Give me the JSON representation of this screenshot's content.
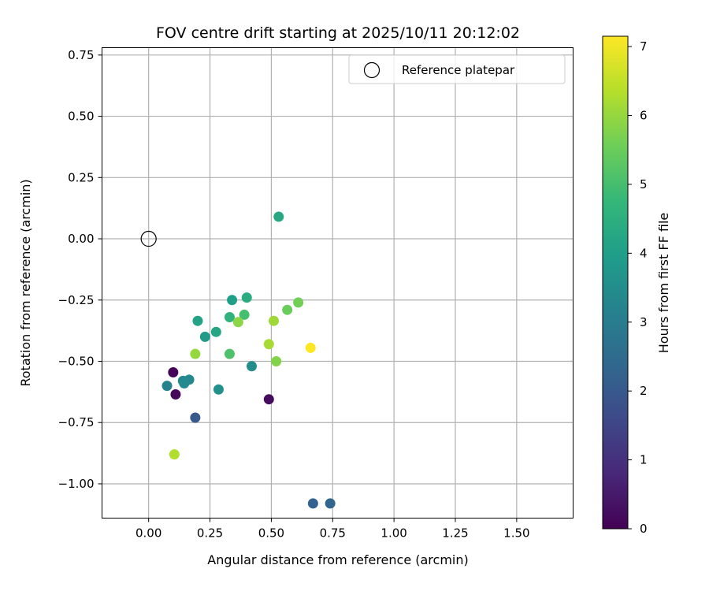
{
  "chart_data": {
    "type": "scatter",
    "title": "FOV centre drift starting at 2025/10/11 20:12:02",
    "xlabel": "Angular distance from reference (arcmin)",
    "ylabel": "Rotation from reference (arcmin)",
    "xlim": [
      -0.19,
      1.73
    ],
    "ylim": [
      -1.14,
      0.78
    ],
    "grid": true,
    "x_ticks": [
      0.0,
      0.25,
      0.5,
      0.75,
      1.0,
      1.25,
      1.5
    ],
    "x_tick_labels": [
      "0.00",
      "0.25",
      "0.50",
      "0.75",
      "1.00",
      "1.25",
      "1.50"
    ],
    "y_ticks": [
      0.75,
      0.5,
      0.25,
      0.0,
      -0.25,
      -0.5,
      -0.75,
      -1.0
    ],
    "y_tick_labels": [
      "0.75",
      "0.50",
      "0.25",
      "0.00",
      "−0.25",
      "−0.50",
      "−0.75",
      "−1.00"
    ],
    "legend": {
      "position": "top-right",
      "entries": [
        {
          "label": "Reference platepar",
          "marker": "open-circle"
        }
      ]
    },
    "reference_point": {
      "x": 0.0,
      "y": 0.0
    },
    "colorbar": {
      "label": "Hours from first FF file",
      "colormap": "viridis",
      "range": [
        0,
        7.15
      ],
      "ticks": [
        0,
        1,
        2,
        3,
        4,
        5,
        6,
        7
      ],
      "tick_labels": [
        "0",
        "1",
        "2",
        "3",
        "4",
        "5",
        "6",
        "7"
      ],
      "colormap_stops": [
        "#440154",
        "#482878",
        "#3e4989",
        "#31688e",
        "#26828e",
        "#1f9e89",
        "#35b779",
        "#6ece58",
        "#b5de2b",
        "#fde725"
      ]
    },
    "points": [
      {
        "x": 0.1,
        "y": -0.545,
        "hours": 0.1
      },
      {
        "x": 0.11,
        "y": -0.635,
        "hours": 0.15
      },
      {
        "x": 0.49,
        "y": -0.655,
        "hours": 0.2
      },
      {
        "x": 0.19,
        "y": -0.73,
        "hours": 2.0
      },
      {
        "x": 0.67,
        "y": -1.08,
        "hours": 2.2
      },
      {
        "x": 0.74,
        "y": -1.08,
        "hours": 2.3
      },
      {
        "x": 0.075,
        "y": -0.6,
        "hours": 3.2
      },
      {
        "x": 0.14,
        "y": -0.58,
        "hours": 3.3
      },
      {
        "x": 0.165,
        "y": -0.575,
        "hours": 3.35
      },
      {
        "x": 0.145,
        "y": -0.59,
        "hours": 3.4
      },
      {
        "x": 0.42,
        "y": -0.52,
        "hours": 3.5
      },
      {
        "x": 0.285,
        "y": -0.615,
        "hours": 3.6
      },
      {
        "x": 0.23,
        "y": -0.4,
        "hours": 3.9
      },
      {
        "x": 0.34,
        "y": -0.25,
        "hours": 4.0
      },
      {
        "x": 0.2,
        "y": -0.335,
        "hours": 4.1
      },
      {
        "x": 0.275,
        "y": -0.38,
        "hours": 4.2
      },
      {
        "x": 0.53,
        "y": 0.09,
        "hours": 4.3
      },
      {
        "x": 0.4,
        "y": -0.24,
        "hours": 4.4
      },
      {
        "x": 0.33,
        "y": -0.32,
        "hours": 4.6
      },
      {
        "x": 0.39,
        "y": -0.31,
        "hours": 5.0
      },
      {
        "x": 0.33,
        "y": -0.47,
        "hours": 5.1
      },
      {
        "x": 0.565,
        "y": -0.29,
        "hours": 5.5
      },
      {
        "x": 0.61,
        "y": -0.26,
        "hours": 5.6
      },
      {
        "x": 0.52,
        "y": -0.5,
        "hours": 5.8
      },
      {
        "x": 0.365,
        "y": -0.34,
        "hours": 5.9
      },
      {
        "x": 0.19,
        "y": -0.47,
        "hours": 6.0
      },
      {
        "x": 0.51,
        "y": -0.335,
        "hours": 6.1
      },
      {
        "x": 0.49,
        "y": -0.43,
        "hours": 6.2
      },
      {
        "x": 0.105,
        "y": -0.88,
        "hours": 6.3
      },
      {
        "x": 0.66,
        "y": -0.445,
        "hours": 7.15
      }
    ]
  }
}
